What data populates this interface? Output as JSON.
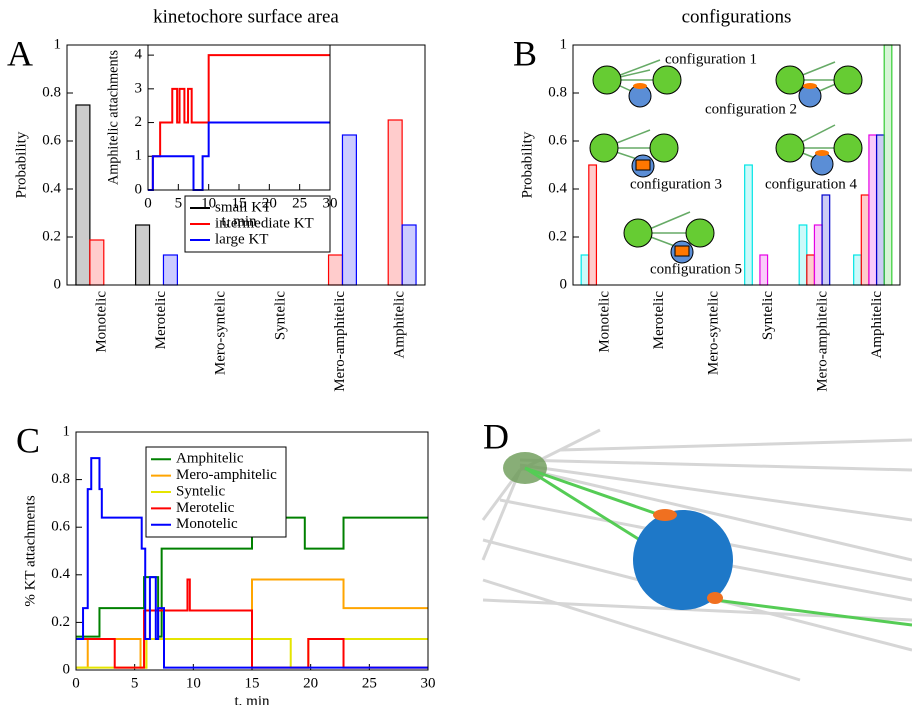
{
  "chart_data": [
    {
      "type": "bar",
      "panel_label": "A",
      "title": "kinetochore surface area",
      "ylabel": "Probability",
      "categories": [
        "Monotelic",
        "Merotelic",
        "Mero-syntelic",
        "Syntelic",
        "Mero-amphitelic",
        "Amphitelic"
      ],
      "series": [
        {
          "name": "small KT",
          "color": "#000000",
          "values": [
            0.75,
            0.25,
            0,
            0,
            0,
            0
          ]
        },
        {
          "name": "intermediate KT",
          "color": "#ff0000",
          "values": [
            0.1875,
            0,
            0,
            0,
            0.125,
            0.6875
          ]
        },
        {
          "name": "large KT",
          "color": "#0000ff",
          "values": [
            0,
            0.125,
            0,
            0,
            0.625,
            0.25
          ]
        }
      ],
      "ylim": [
        0,
        1
      ],
      "yticks": [
        0,
        0.2,
        0.4,
        0.6,
        0.8,
        1
      ]
    },
    {
      "type": "step",
      "xlabel": "t, min",
      "ylabel": "Amphitelic attachments",
      "series": [
        {
          "color": "#ff0000",
          "x": [
            0,
            0.8,
            2,
            4,
            4.8,
            5.2,
            6,
            6.6,
            7.2,
            10,
            30
          ],
          "values": [
            0,
            1,
            2,
            3,
            2,
            3,
            2,
            3,
            2,
            4,
            4
          ]
        },
        {
          "color": "#0000ff",
          "x": [
            0,
            0.8,
            7.5,
            9,
            10,
            30
          ],
          "values": [
            0,
            1,
            0,
            1,
            2,
            2
          ]
        }
      ],
      "xlim": [
        0,
        30
      ],
      "xticks": [
        0,
        5,
        10,
        15,
        20,
        25,
        30
      ],
      "ylim": [
        0,
        4.3
      ],
      "yticks": [
        0,
        1,
        2,
        3,
        4
      ]
    },
    {
      "type": "bar",
      "panel_label": "B",
      "title": "configurations",
      "ylabel": "Probability",
      "categories": [
        "Monotelic",
        "Merotelic",
        "Mero-syntelic",
        "Syntelic",
        "Mero-amphitelic",
        "Amphitelic"
      ],
      "series": [
        {
          "name": "configuration 5",
          "color": "#00e5e5",
          "values": [
            0.125,
            0,
            0,
            0.5,
            0.25,
            0.125
          ]
        },
        {
          "name": "configuration 4",
          "color": "#ff0000",
          "values": [
            0.5,
            0,
            0,
            0,
            0.125,
            0.375
          ]
        },
        {
          "name": "configuration 3",
          "color": "#e500e5",
          "values": [
            0,
            0,
            0,
            0.125,
            0.25,
            0.625
          ]
        },
        {
          "name": "configuration 2",
          "color": "#0000cc",
          "values": [
            0,
            0,
            0,
            0,
            0.375,
            0.625
          ]
        },
        {
          "name": "configuration 1",
          "color": "#33cc33",
          "values": [
            0,
            0,
            0,
            0,
            0,
            1
          ]
        }
      ],
      "ylim": [
        0,
        1
      ],
      "yticks": [
        0,
        0.2,
        0.4,
        0.6,
        0.8,
        1
      ]
    },
    {
      "type": "step",
      "panel_label": "C",
      "xlabel": "t, min",
      "ylabel": "% KT attachments",
      "series": [
        {
          "name": "Amphitelic",
          "color": "#008000",
          "x": [
            0,
            2,
            5.8,
            7,
            7.3,
            15,
            19.5,
            22.8,
            30
          ],
          "values": [
            0.14,
            0.26,
            0.39,
            0.14,
            0.51,
            0.64,
            0.51,
            0.64,
            0.64
          ]
        },
        {
          "name": "Mero-amphitelic",
          "color": "#ffa500",
          "x": [
            0,
            1,
            5.5,
            6,
            15,
            22.8,
            30
          ],
          "values": [
            0.01,
            0.13,
            0.01,
            0.13,
            0.38,
            0.26,
            0.26
          ]
        },
        {
          "name": "Syntelic",
          "color": "#e5e500",
          "x": [
            0,
            6,
            18.3,
            19.8,
            30
          ],
          "values": [
            0.01,
            0.13,
            0.01,
            0.13,
            0.13
          ]
        },
        {
          "name": "Merotelic",
          "color": "#ff0000",
          "x": [
            0,
            3.3,
            5.8,
            9.5,
            9.7,
            15,
            19.8,
            22.8,
            30
          ],
          "values": [
            0.13,
            0.01,
            0.25,
            0.38,
            0.25,
            0.01,
            0.13,
            0.01,
            0.01
          ]
        },
        {
          "name": "Monotelic",
          "color": "#0000ff",
          "x": [
            0,
            0.6,
            1,
            1.3,
            2,
            2.2,
            5.6,
            5.9,
            6.3,
            6.8,
            7,
            7.5,
            30
          ],
          "values": [
            0.13,
            0.26,
            0.76,
            0.89,
            0.76,
            0.64,
            0.51,
            0.13,
            0.39,
            0.13,
            0.26,
            0.01,
            0.01
          ]
        }
      ],
      "xlim": [
        0,
        30
      ],
      "xticks": [
        0,
        5,
        10,
        15,
        20,
        25,
        30
      ],
      "ylim": [
        0,
        1
      ],
      "yticks": [
        0,
        0.2,
        0.4,
        0.6,
        0.8,
        1
      ]
    }
  ],
  "image_panel": {
    "label": "D"
  }
}
